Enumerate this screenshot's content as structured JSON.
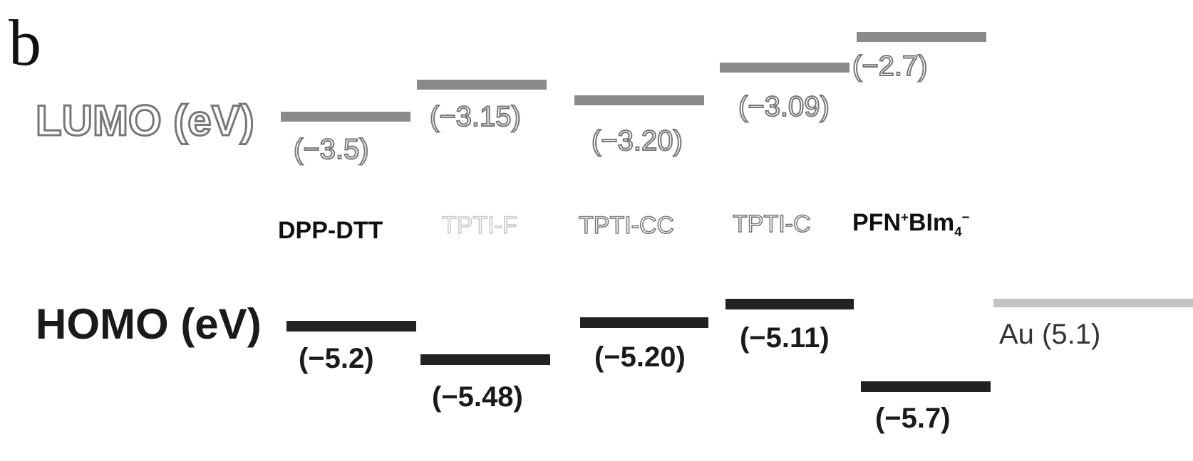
{
  "panel_label": "b",
  "row_labels": {
    "lumo": "LUMO (eV)",
    "homo": "HOMO (eV)"
  },
  "materials": [
    {
      "name": "DPP-DTT",
      "lumo": -3.5,
      "lumo_label": "(−3.5)",
      "homo": -5.2,
      "homo_label": "(−5.2)"
    },
    {
      "name": "TPTI-F",
      "lumo": -3.15,
      "lumo_label": "(−3.15)",
      "homo": -5.48,
      "homo_label": "(−5.48)"
    },
    {
      "name": "TPTI-CC",
      "lumo": -3.2,
      "lumo_label": "(−3.20)",
      "homo": -5.2,
      "homo_label": "(−5.20)"
    },
    {
      "name": "TPTI-C",
      "lumo": -3.09,
      "lumo_label": "(−3.09)",
      "homo": -5.11,
      "homo_label": "(−5.11)"
    },
    {
      "name_main": "PFN",
      "name_sup1": "+",
      "name_mid": "BIm",
      "name_sub": "4",
      "name_sup2": "−",
      "lumo": -2.7,
      "lumo_label": "(−2.7)",
      "homo": -5.7,
      "homo_label": "(−5.7)"
    }
  ],
  "electrode": {
    "label": "Au (5.1)",
    "value": 5.1
  },
  "colors": {
    "lumo_bar": "#8a8a8a",
    "homo_bar": "#222222",
    "au_bar": "#c4c4c4"
  }
}
